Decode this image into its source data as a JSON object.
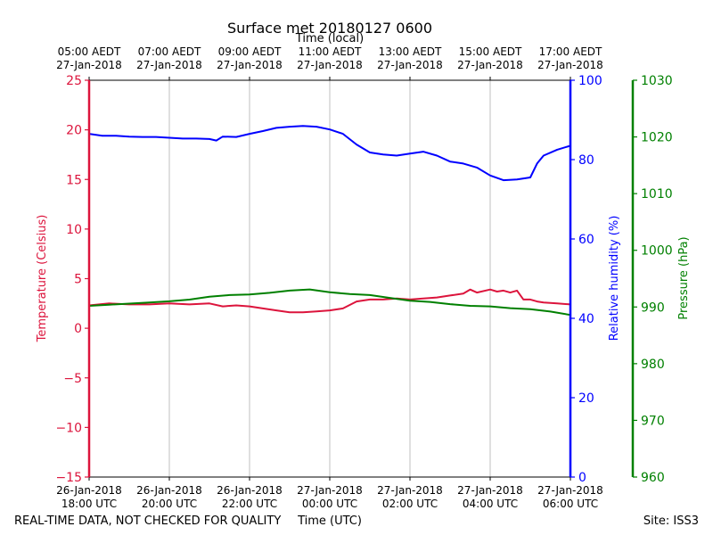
{
  "chart_data": {
    "type": "line",
    "title": "Surface met 20180127 0600",
    "top_axis_label": "Time (local)",
    "bottom_axis_label": "Time (UTC)",
    "footer_left": "REAL-TIME DATA, NOT CHECKED FOR QUALITY",
    "footer_right": "Site: ISS3",
    "x_range_hours": [
      0,
      12
    ],
    "grid": "vertical",
    "x_ticks_utc": [
      {
        "line1": "26-Jan-2018",
        "line2": "18:00 UTC"
      },
      {
        "line1": "26-Jan-2018",
        "line2": "20:00 UTC"
      },
      {
        "line1": "26-Jan-2018",
        "line2": "22:00 UTC"
      },
      {
        "line1": "27-Jan-2018",
        "line2": "00:00 UTC"
      },
      {
        "line1": "27-Jan-2018",
        "line2": "02:00 UTC"
      },
      {
        "line1": "27-Jan-2018",
        "line2": "04:00 UTC"
      },
      {
        "line1": "27-Jan-2018",
        "line2": "06:00 UTC"
      }
    ],
    "x_ticks_local": [
      {
        "line1": "05:00 AEDT",
        "line2": "27-Jan-2018"
      },
      {
        "line1": "07:00 AEDT",
        "line2": "27-Jan-2018"
      },
      {
        "line1": "09:00 AEDT",
        "line2": "27-Jan-2018"
      },
      {
        "line1": "11:00 AEDT",
        "line2": "27-Jan-2018"
      },
      {
        "line1": "13:00 AEDT",
        "line2": "27-Jan-2018"
      },
      {
        "line1": "15:00 AEDT",
        "line2": "27-Jan-2018"
      },
      {
        "line1": "17:00 AEDT",
        "line2": "27-Jan-2018"
      }
    ],
    "axes": {
      "temperature": {
        "label": "Temperature (Celsius)",
        "range": [
          -15,
          25
        ],
        "ticks": [
          "25",
          "20",
          "15",
          "10",
          "5",
          "0",
          "−5",
          "−10",
          "−15"
        ],
        "color": "#dc143c"
      },
      "humidity": {
        "label": "Relative humidity (%)",
        "range": [
          0,
          100
        ],
        "ticks": [
          "100",
          "80",
          "60",
          "40",
          "20",
          "0"
        ],
        "color": "#0000ff"
      },
      "pressure": {
        "label": "Pressure (hPa)",
        "range": [
          960,
          1030
        ],
        "ticks": [
          "1030",
          "1020",
          "1010",
          "1000",
          "990",
          "980",
          "970",
          "960"
        ],
        "color": "#008000"
      }
    },
    "series": [
      {
        "name": "Relative humidity",
        "axis": "humidity",
        "color": "#0000ff",
        "x": [
          0,
          0.33,
          0.67,
          1,
          1.33,
          1.67,
          2,
          2.33,
          2.67,
          3,
          3.17,
          3.33,
          3.67,
          4,
          4.33,
          4.67,
          5,
          5.33,
          5.67,
          6,
          6.33,
          6.67,
          7,
          7.33,
          7.67,
          8,
          8.33,
          8.67,
          9,
          9.33,
          9.67,
          10,
          10.33,
          10.67,
          11,
          11.17,
          11.33,
          11.67,
          12
        ],
        "values": [
          86.5,
          86,
          86,
          85.8,
          85.7,
          85.7,
          85.5,
          85.3,
          85.3,
          85.2,
          84.8,
          85.8,
          85.7,
          86.5,
          87.2,
          88,
          88.3,
          88.5,
          88.3,
          87.6,
          86.5,
          83.8,
          81.8,
          81.3,
          81,
          81.5,
          82,
          81,
          79.5,
          79,
          78,
          76,
          74.8,
          75,
          75.5,
          79,
          81,
          82.5,
          83.5
        ]
      },
      {
        "name": "Temperature",
        "axis": "temperature",
        "color": "#dc143c",
        "x": [
          0,
          0.5,
          1,
          1.5,
          2,
          2.5,
          3,
          3.33,
          3.67,
          4,
          4.33,
          4.67,
          5,
          5.33,
          5.67,
          6,
          6.33,
          6.67,
          7,
          7.33,
          7.67,
          8,
          8.33,
          8.67,
          9,
          9.33,
          9.5,
          9.67,
          10,
          10.17,
          10.33,
          10.5,
          10.67,
          10.83,
          11,
          11.17,
          11.33,
          11.67,
          12
        ],
        "values": [
          2.3,
          2.5,
          2.4,
          2.4,
          2.5,
          2.4,
          2.5,
          2.2,
          2.3,
          2.2,
          2.0,
          1.8,
          1.6,
          1.6,
          1.7,
          1.8,
          2.0,
          2.7,
          2.9,
          2.9,
          3.0,
          2.9,
          3.0,
          3.1,
          3.3,
          3.5,
          3.9,
          3.6,
          3.9,
          3.7,
          3.8,
          3.6,
          3.8,
          2.9,
          2.9,
          2.7,
          2.6,
          2.5,
          2.4
        ]
      },
      {
        "name": "Pressure",
        "axis": "pressure",
        "color": "#008000",
        "x": [
          0,
          0.5,
          1,
          1.5,
          2,
          2.5,
          3,
          3.5,
          4,
          4.5,
          5,
          5.5,
          6,
          6.5,
          7,
          7.5,
          8,
          8.5,
          9,
          9.5,
          10,
          10.5,
          11,
          11.5,
          12
        ],
        "values": [
          990.2,
          990.4,
          990.6,
          990.8,
          991,
          991.3,
          991.8,
          992.1,
          992.2,
          992.5,
          992.9,
          993.1,
          992.6,
          992.3,
          992.1,
          991.6,
          991.1,
          990.9,
          990.5,
          990.2,
          990.1,
          989.8,
          989.6,
          989.2,
          988.6
        ]
      }
    ]
  }
}
